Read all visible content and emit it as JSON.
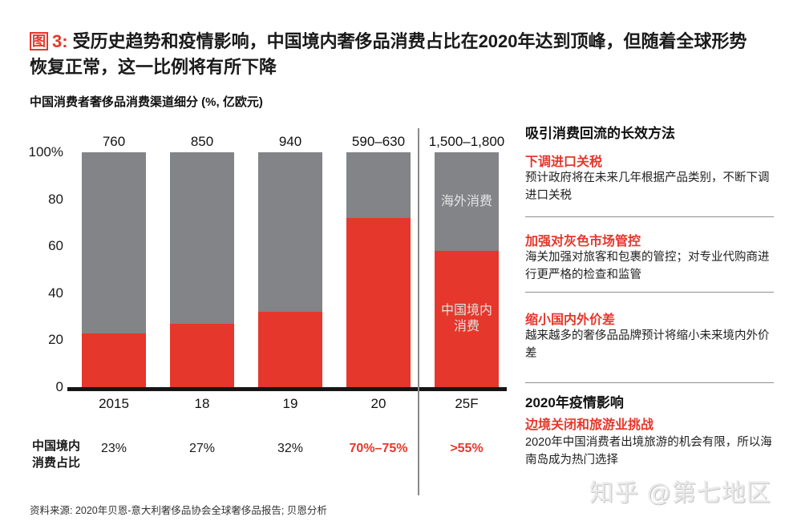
{
  "colors": {
    "red": "#e5372b",
    "gray": "#828488",
    "text": "#1a1a1a",
    "divider": "#8f8f8f",
    "watermark": "#e9e9e9"
  },
  "figure": {
    "badge": "图",
    "number": "3:",
    "title": "受历史趋势和疫情影响，中国境内奢侈品消费占比在2020年达到顶峰，但随着全球形势恢复正常，这一比例将有所下降",
    "subtitle": "中国消费者奢侈品消费渠道细分 (%, 亿欧元)"
  },
  "chart_data": {
    "type": "bar",
    "stacked": true,
    "categories": [
      "2015",
      "18",
      "19",
      "20",
      "25F"
    ],
    "totals": [
      "760",
      "850",
      "940",
      "590–630",
      "1,500–1,800"
    ],
    "series": [
      {
        "name": "中国境内消费",
        "color": "#e5372b",
        "values": [
          23,
          27,
          32,
          72,
          58
        ]
      },
      {
        "name": "海外消费",
        "color": "#828488",
        "values": [
          77,
          73,
          68,
          28,
          42
        ]
      }
    ],
    "yticks": [
      "100%",
      "80",
      "60",
      "40",
      "20",
      "0"
    ],
    "ylim": [
      0,
      100
    ],
    "legend_position": "in-bar",
    "grid": false,
    "forecast_divider_after": "20",
    "inner_labels": {
      "bar_index": 4,
      "overseas": "海外消费",
      "domestic": "中国境内消费"
    },
    "share_row": {
      "label": "中国境内消费占比",
      "values": [
        "23%",
        "27%",
        "32%",
        "70%–75%",
        ">55%"
      ],
      "highlighted": [
        false,
        false,
        false,
        true,
        true
      ]
    }
  },
  "right_panel": {
    "heading1": "吸引消费回流的长效方法",
    "sections": [
      {
        "title": "下调进口关税",
        "body": "预计政府将在未来几年根据产品类别，不断下调进口关税"
      },
      {
        "title": "加强对灰色市场管控",
        "body": "海关加强对旅客和包裹的管控；对专业代购商进行更严格的检查和监管"
      },
      {
        "title": "缩小国内外价差",
        "body": "越来越多的奢侈品品牌预计将缩小未来境内外价差"
      }
    ],
    "heading2": "2020年疫情影响",
    "sections2": [
      {
        "title": "边境关闭和旅游业挑战",
        "body": "2020年中国消费者出境旅游的机会有限，所以海南岛成为热门选择"
      }
    ]
  },
  "footer": {
    "source": "资料来源: 2020年贝恩-意大利奢侈品协会全球奢侈品报告; 贝恩分析"
  },
  "watermark": {
    "text": "知乎 @第七地区"
  }
}
